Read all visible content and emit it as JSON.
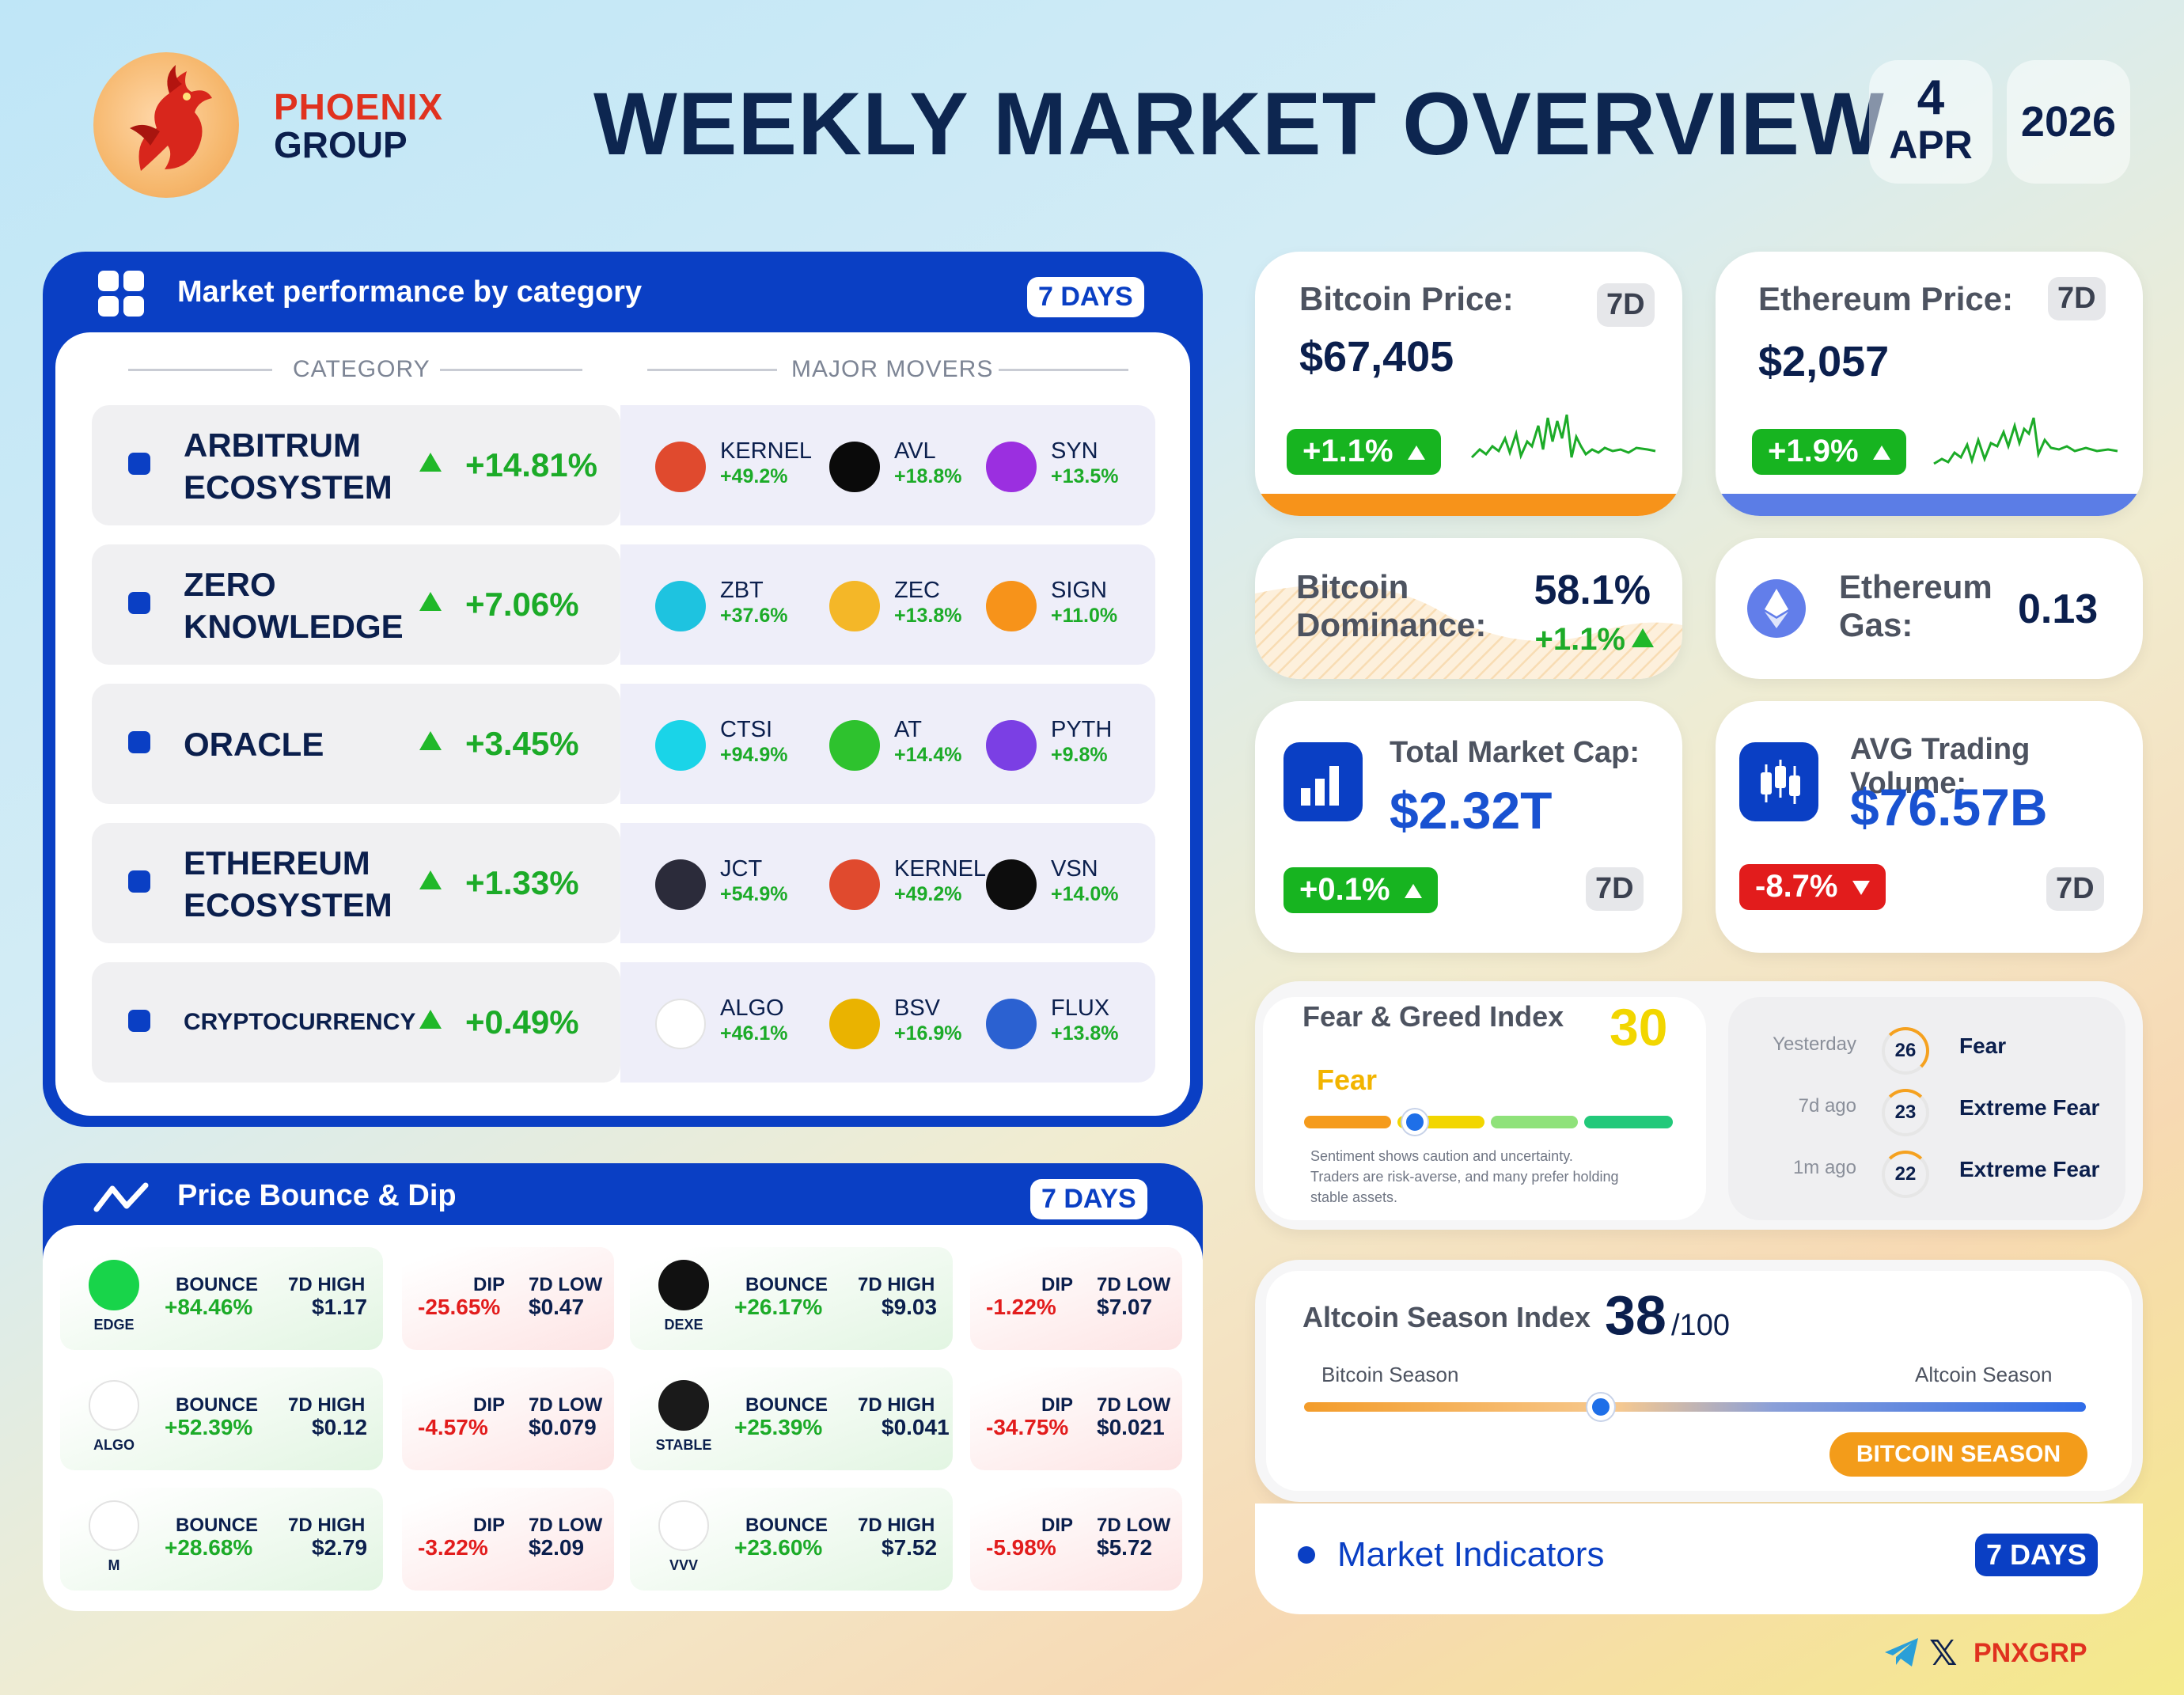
{
  "brand": {
    "line1": "PHOENIX",
    "line2": "GROUP"
  },
  "title": "WEEKLY MARKET OVERVIEW",
  "date": {
    "day": "4",
    "month": "APR",
    "year": "2026"
  },
  "category_panel": {
    "title": "Market performance by category",
    "period": "7 DAYS",
    "col_category": "CATEGORY",
    "col_movers": "MAJOR MOVERS",
    "rows": [
      {
        "name_l1": "ARBITRUM",
        "name_l2": "ECOSYSTEM",
        "pct": "+14.81%",
        "movers": [
          {
            "name": "KERNEL",
            "pct": "+49.2%",
            "color": "#e04a2e"
          },
          {
            "name": "AVL",
            "pct": "+18.8%",
            "color": "#0a0a0a"
          },
          {
            "name": "SYN",
            "pct": "+13.5%",
            "color": "#9b2fe0"
          }
        ]
      },
      {
        "name_l1": "ZERO",
        "name_l2": "KNOWLEDGE",
        "pct": "+7.06%",
        "movers": [
          {
            "name": "ZBT",
            "pct": "+37.6%",
            "color": "#1ec3e0"
          },
          {
            "name": "ZEC",
            "pct": "+13.8%",
            "color": "#f4b728"
          },
          {
            "name": "SIGN",
            "pct": "+11.0%",
            "color": "#f7931a"
          }
        ]
      },
      {
        "name_l1": "ORACLE",
        "name_l2": "",
        "pct": "+3.45%",
        "movers": [
          {
            "name": "CTSI",
            "pct": "+94.9%",
            "color": "#1ad4e8"
          },
          {
            "name": "AT",
            "pct": "+14.4%",
            "color": "#2ec22e"
          },
          {
            "name": "PYTH",
            "pct": "+9.8%",
            "color": "#7b3fe4"
          }
        ]
      },
      {
        "name_l1": "ETHEREUM",
        "name_l2": "ECOSYSTEM",
        "pct": "+1.33%",
        "movers": [
          {
            "name": "JCT",
            "pct": "+54.9%",
            "color": "#2b2b3a"
          },
          {
            "name": "KERNEL",
            "pct": "+49.2%",
            "color": "#e04a2e"
          },
          {
            "name": "VSN",
            "pct": "+14.0%",
            "color": "#0d0d0d"
          }
        ]
      },
      {
        "name_l1": "CRYPTOCURRENCY",
        "name_l2": "",
        "pct": "+0.49%",
        "movers": [
          {
            "name": "ALGO",
            "pct": "+46.1%",
            "color": "#ffffff"
          },
          {
            "name": "BSV",
            "pct": "+16.9%",
            "color": "#eab300"
          },
          {
            "name": "FLUX",
            "pct": "+13.8%",
            "color": "#2b61d1"
          }
        ]
      }
    ]
  },
  "bounce_panel": {
    "title": "Price Bounce & Dip",
    "period": "7 DAYS",
    "bounce_label": "BOUNCE",
    "high_label": "7D HIGH",
    "dip_label": "DIP",
    "low_label": "7D LOW",
    "items": [
      {
        "ticker": "EDGE",
        "color": "#18d44a",
        "bounce": "+84.46%",
        "high": "$1.17",
        "dip": "-25.65%",
        "low": "$0.47"
      },
      {
        "ticker": "DEXE",
        "color": "#111111",
        "bounce": "+26.17%",
        "high": "$9.03",
        "dip": "-1.22%",
        "low": "$7.07"
      },
      {
        "ticker": "ALGO",
        "color": "#ffffff",
        "bounce": "+52.39%",
        "high": "$0.12",
        "dip": "-4.57%",
        "low": "$0.079"
      },
      {
        "ticker": "STABLE",
        "color": "#1a1a1a",
        "bounce": "+25.39%",
        "high": "$0.041",
        "dip": "-34.75%",
        "low": "$0.021"
      },
      {
        "ticker": "M",
        "color": "#ffffff",
        "bounce": "+28.68%",
        "high": "$2.79",
        "dip": "-3.22%",
        "low": "$2.09"
      },
      {
        "ticker": "VVV",
        "color": "#ffffff",
        "bounce": "+23.60%",
        "high": "$7.52",
        "dip": "-5.98%",
        "low": "$5.72"
      }
    ]
  },
  "btc": {
    "label": "Bitcoin Price:",
    "value": "$67,405",
    "change": "+1.1%",
    "period": "7D",
    "accent": "#f7931a"
  },
  "eth": {
    "label": "Ethereum Price:",
    "value": "$2,057",
    "change": "+1.9%",
    "period": "7D",
    "accent": "#5b7de6"
  },
  "dominance": {
    "label_l1": "Bitcoin",
    "label_l2": "Dominance:",
    "value": "58.1%",
    "change": "+1.1%"
  },
  "gas": {
    "label_l1": "Ethereum",
    "label_l2": "Gas:",
    "value": "0.13"
  },
  "mcap": {
    "label": "Total Market Cap:",
    "value": "$2.32T",
    "change": "+0.1%",
    "period": "7D"
  },
  "volume": {
    "label": "AVG Trading Volume:",
    "value": "$76.57B",
    "change": "-8.7%",
    "period": "7D"
  },
  "fear_greed": {
    "title": "Fear & Greed Index",
    "value": "30",
    "state": "Fear",
    "description_l1": "Sentiment shows caution and uncertainty.",
    "description_l2": "Traders are risk-averse, and many prefer holding",
    "description_l3": "stable assets.",
    "level": 0.3,
    "history": [
      {
        "when": "Yesterday",
        "value": "26",
        "label": "Fear"
      },
      {
        "when": "7d ago",
        "value": "23",
        "label": "Extreme Fear"
      },
      {
        "when": "1m ago",
        "value": "22",
        "label": "Extreme Fear"
      }
    ]
  },
  "altseason": {
    "title": "Altcoin Season Index",
    "value": "38",
    "max": "/100",
    "left": "Bitcoin Season",
    "right": "Altcoin Season",
    "badge": "BITCOIN SEASON",
    "level": 0.38
  },
  "indicators": {
    "label": "Market Indicators",
    "period": "7 DAYS"
  },
  "footer": {
    "handle": "PNXGRP"
  }
}
